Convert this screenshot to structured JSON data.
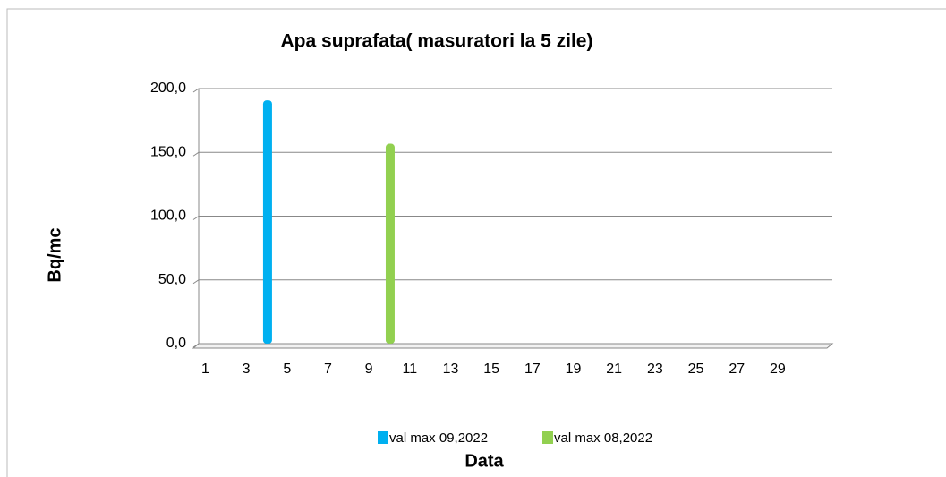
{
  "chart_data": {
    "type": "bar",
    "title": "Apa suprafata( masuratori la 5 zile)",
    "x_label": "Data",
    "y_label": "Bq/mc",
    "categories": [
      "1",
      null,
      "3",
      null,
      "5",
      null,
      "7",
      null,
      "9",
      null,
      "11",
      null,
      "13",
      null,
      "15",
      null,
      "17",
      null,
      "19",
      null,
      "21",
      null,
      "23",
      null,
      "25",
      null,
      "27",
      null,
      "29",
      null,
      null
    ],
    "series": [
      {
        "name": "val max 09,2022",
        "color": "#00b0f0",
        "values": [
          null,
          null,
          null,
          188,
          null,
          null,
          null,
          null,
          null,
          null,
          null,
          null,
          null,
          null,
          null,
          null,
          null,
          null,
          null,
          null,
          null,
          null,
          null,
          null,
          null,
          null,
          null,
          null,
          null,
          null,
          null
        ]
      },
      {
        "name": "val max 08,2022",
        "color": "#92d050",
        "values": [
          null,
          null,
          null,
          null,
          null,
          null,
          null,
          null,
          null,
          154,
          null,
          null,
          null,
          null,
          null,
          null,
          null,
          null,
          null,
          null,
          null,
          null,
          null,
          null,
          null,
          null,
          null,
          null,
          null,
          null,
          null
        ]
      }
    ],
    "ylim": [
      0,
      200
    ],
    "yticks": [
      {
        "value": 0,
        "label": "0,0"
      },
      {
        "value": 50,
        "label": "50,0"
      },
      {
        "value": 100,
        "label": "100,0"
      },
      {
        "value": 150,
        "label": "150,0"
      },
      {
        "value": 200,
        "label": "200,0"
      }
    ],
    "grid": true,
    "legend": "bottom"
  }
}
